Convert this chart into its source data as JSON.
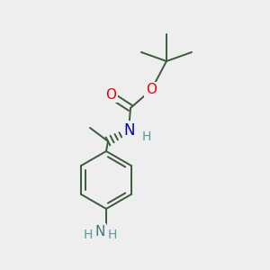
{
  "bg_color": "#eeeeee",
  "bond_color": "#3a5a3a",
  "bond_width": 1.4,
  "atom_colors": {
    "O": "#ee0000",
    "N_blue": "#0000bb",
    "N_teal": "#3a7a7a",
    "H": "#5a9a9a"
  }
}
